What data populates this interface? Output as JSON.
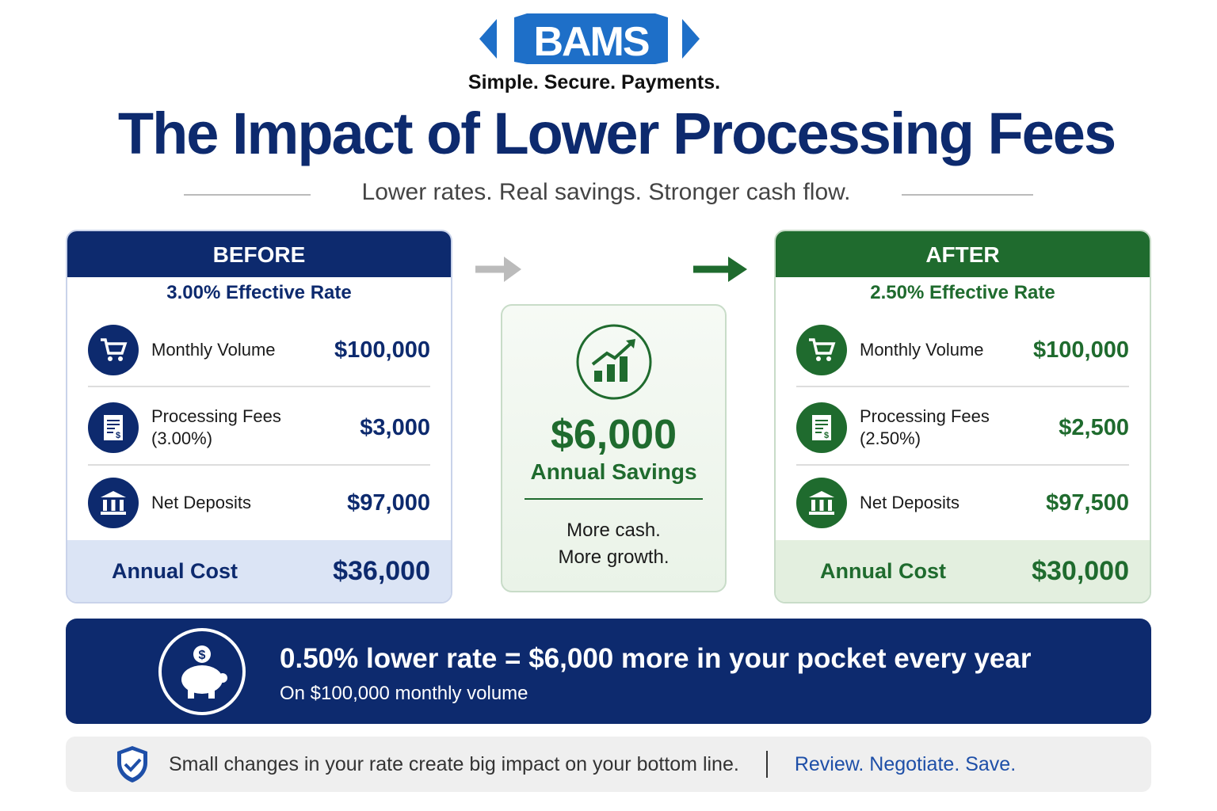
{
  "logo": {
    "text": "BAMS",
    "tagline": "Simple. Secure. Payments."
  },
  "title": "The Impact of Lower Processing Fees",
  "subtitle": "Lower rates. Real savings. Stronger cash flow.",
  "colors": {
    "navy": "#0d2a6e",
    "green": "#1f6b2e",
    "logo_blue": "#1e6fc8"
  },
  "before": {
    "header": "BEFORE",
    "rate": "3.00% Effective Rate",
    "rows": [
      {
        "icon": "cart-icon",
        "label": "Monthly Volume",
        "value": "$100,000"
      },
      {
        "icon": "receipt-icon",
        "label": "Processing Fees",
        "sub": "(3.00%)",
        "value": "$3,000"
      },
      {
        "icon": "bank-icon",
        "label": "Net Deposits",
        "value": "$97,000"
      }
    ],
    "footer_label": "Annual Cost",
    "footer_value": "$36,000"
  },
  "after": {
    "header": "AFTER",
    "rate": "2.50% Effective Rate",
    "rows": [
      {
        "icon": "cart-icon",
        "label": "Monthly Volume",
        "value": "$100,000"
      },
      {
        "icon": "receipt-icon",
        "label": "Processing Fees",
        "sub": "(2.50%)",
        "value": "$2,500"
      },
      {
        "icon": "bank-icon",
        "label": "Net Deposits",
        "value": "$97,500"
      }
    ],
    "footer_label": "Annual Cost",
    "footer_value": "$30,000"
  },
  "savings": {
    "amount": "$6,000",
    "label": "Annual Savings",
    "line1": "More cash.",
    "line2": "More growth."
  },
  "banner": {
    "headline": "0.50% lower rate = $6,000 more in your pocket every year",
    "sub": "On $100,000 monthly volume"
  },
  "strip": {
    "text": "Small changes in your rate create big impact on your bottom line.",
    "cta": "Review. Negotiate. Save."
  }
}
